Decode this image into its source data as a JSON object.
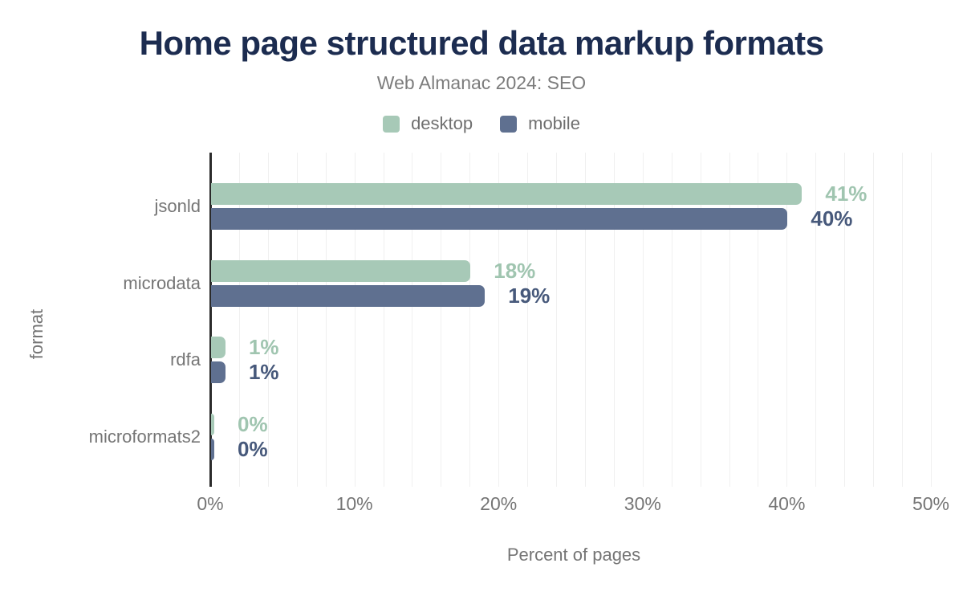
{
  "colors": {
    "background": "#ffffff",
    "title": "#1c2c50",
    "subtitle": "#7c7c7c",
    "axis_text": "#757575",
    "legend_text": "#6f6f6f",
    "grid": "#f0f0f0",
    "axis_line": "#2b2b2b",
    "desktop": "#a7c9b7",
    "mobile": "#5f7090",
    "desktop_value_text": "#a0c5b0",
    "mobile_value_text": "#47597b"
  },
  "chart_data": {
    "type": "bar",
    "orientation": "horizontal",
    "title": "Home page structured data markup formats",
    "subtitle": "Web Almanac 2024: SEO",
    "categories": [
      "jsonld",
      "microdata",
      "rdfa",
      "microformats2"
    ],
    "series": [
      {
        "name": "desktop",
        "color": "#a7c9b7",
        "label_color": "#a0c5b0",
        "values": [
          41,
          18,
          1,
          0
        ],
        "labels": [
          "41%",
          "18%",
          "1%",
          "0%"
        ]
      },
      {
        "name": "mobile",
        "color": "#5f7090",
        "label_color": "#47597b",
        "values": [
          40,
          19,
          1,
          0
        ],
        "labels": [
          "40%",
          "19%",
          "1%",
          "0%"
        ]
      }
    ],
    "xlabel": "Percent of pages",
    "ylabel": "format",
    "xlim": [
      0,
      50
    ],
    "x_ticks": [
      {
        "value": 0,
        "label": "0%"
      },
      {
        "value": 10,
        "label": "10%"
      },
      {
        "value": 20,
        "label": "20%"
      },
      {
        "value": 30,
        "label": "30%"
      },
      {
        "value": 40,
        "label": "40%"
      },
      {
        "value": 50,
        "label": "50%"
      }
    ],
    "grid": {
      "show": true,
      "step_pct": 2
    },
    "legend_position": "top",
    "legend": [
      "desktop",
      "mobile"
    ]
  }
}
